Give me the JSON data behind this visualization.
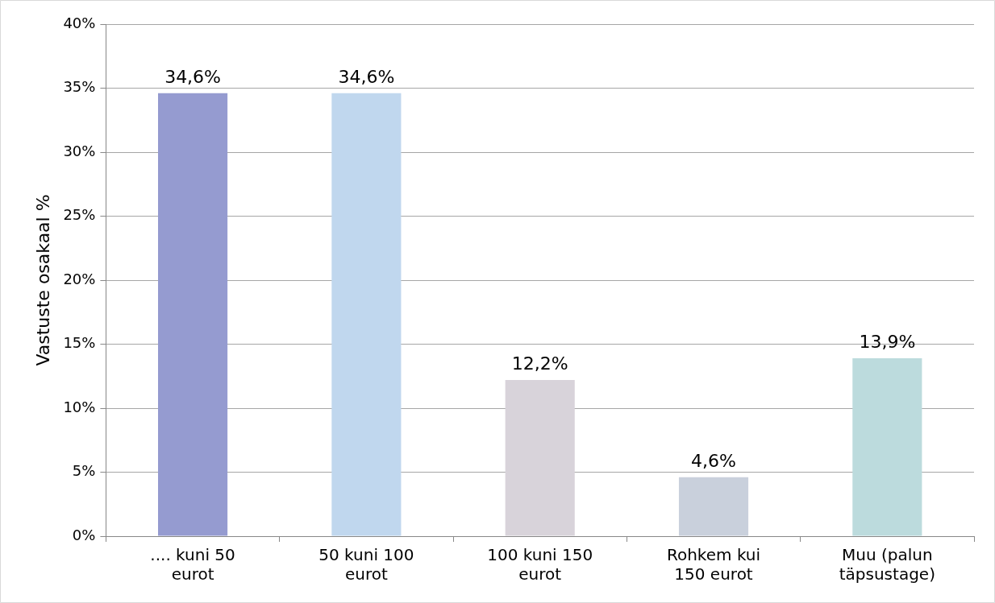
{
  "chart_data": {
    "type": "bar",
    "ylabel": "Vastuste osakaal %",
    "categories": [
      ".... kuni 50 eurot",
      "50 kuni 100 eurot",
      "100 kuni 150 eurot",
      "Rohkem kui 150 eurot",
      "Muu (palun täpsustage)"
    ],
    "values": [
      34.6,
      34.6,
      12.2,
      4.6,
      13.9
    ],
    "colors": [
      "#959bd0",
      "#c0d7ee",
      "#d8d3da",
      "#c9d0dc",
      "#bcdbdd"
    ],
    "value_labels": [
      "34,6%",
      "34,6%",
      "12,2%",
      "4,6%",
      "13,9%"
    ],
    "ylim": [
      0,
      40
    ],
    "yticks": [
      {
        "value": 0,
        "label": "0%"
      },
      {
        "value": 5,
        "label": "5%"
      },
      {
        "value": 10,
        "label": "10%"
      },
      {
        "value": 15,
        "label": "15%"
      },
      {
        "value": 20,
        "label": "20%"
      },
      {
        "value": 25,
        "label": "25%"
      },
      {
        "value": 30,
        "label": "30%"
      },
      {
        "value": 35,
        "label": "35%"
      },
      {
        "value": 40,
        "label": "40%"
      }
    ],
    "grid": "y",
    "legend": false
  }
}
